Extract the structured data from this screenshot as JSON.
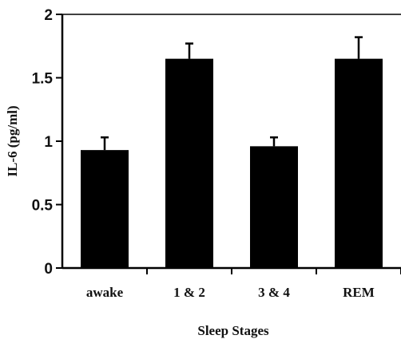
{
  "chart_data": {
    "type": "bar",
    "title": "",
    "xlabel": "Sleep Stages",
    "ylabel": "IL-6 (pg/ml)",
    "categories": [
      "awake",
      "1 & 2",
      "3 & 4",
      "REM"
    ],
    "values": [
      0.93,
      1.65,
      0.96,
      1.65
    ],
    "error_upper": [
      1.03,
      1.77,
      1.03,
      1.82
    ],
    "ylim": [
      0,
      2
    ],
    "yticks": [
      "0",
      "0.5",
      "1",
      "1.5",
      "2"
    ],
    "grid": false,
    "bar_color": "#000000"
  }
}
